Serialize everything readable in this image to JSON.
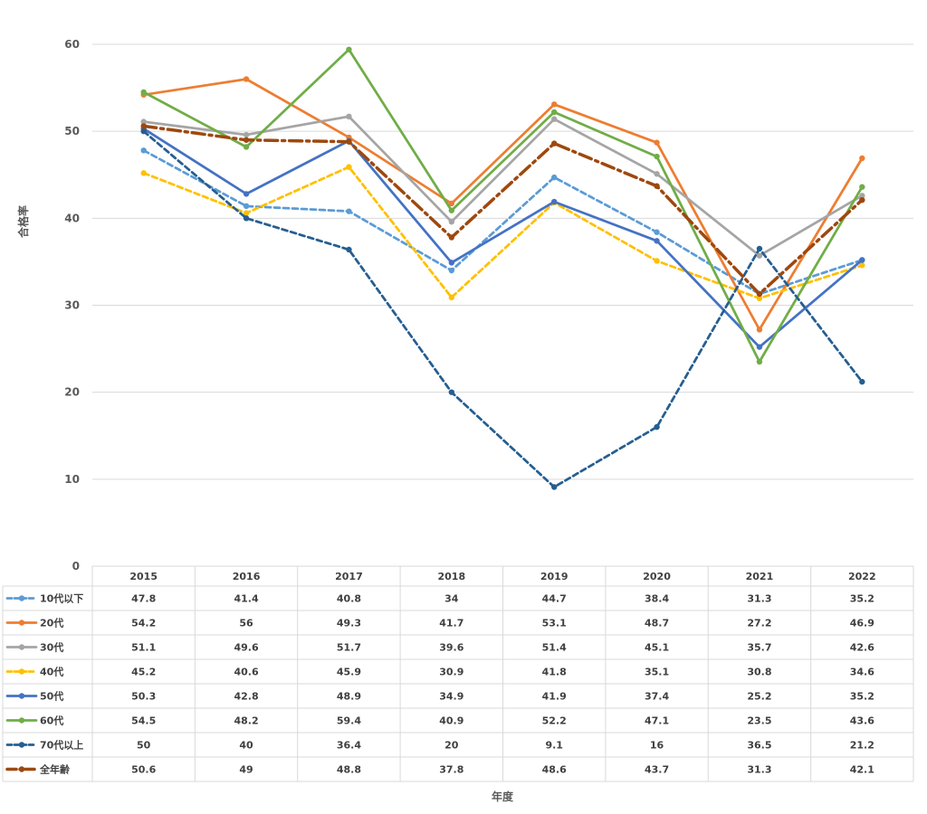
{
  "chart_data": {
    "type": "line",
    "ylabel": "合格率",
    "xlabel": "年度",
    "ylim": [
      0,
      60
    ],
    "yticks": [
      0,
      10,
      20,
      30,
      40,
      50,
      60
    ],
    "grid": true,
    "legend": "data-table",
    "categories": [
      "2015",
      "2016",
      "2017",
      "2018",
      "2019",
      "2020",
      "2021",
      "2022"
    ],
    "series": [
      {
        "name": "10代以下",
        "color": "#5B9BD5",
        "dash": "dash",
        "values": [
          47.8,
          41.4,
          40.8,
          34,
          44.7,
          38.4,
          31.3,
          35.2
        ]
      },
      {
        "name": "20代",
        "color": "#ED7D31",
        "dash": "solid",
        "values": [
          54.2,
          56,
          49.3,
          41.7,
          53.1,
          48.7,
          27.2,
          46.9
        ]
      },
      {
        "name": "30代",
        "color": "#A5A5A5",
        "dash": "solid",
        "values": [
          51.1,
          49.6,
          51.7,
          39.6,
          51.4,
          45.1,
          35.7,
          42.6
        ]
      },
      {
        "name": "40代",
        "color": "#FFC000",
        "dash": "dash",
        "values": [
          45.2,
          40.6,
          45.9,
          30.9,
          41.8,
          35.1,
          30.8,
          34.6
        ]
      },
      {
        "name": "50代",
        "color": "#4472C4",
        "dash": "solid",
        "values": [
          50.3,
          42.8,
          48.9,
          34.9,
          41.9,
          37.4,
          25.2,
          35.2
        ]
      },
      {
        "name": "60代",
        "color": "#70AD47",
        "dash": "solid",
        "values": [
          54.5,
          48.2,
          59.4,
          40.9,
          52.2,
          47.1,
          23.5,
          43.6
        ]
      },
      {
        "name": "70代以上",
        "color": "#255E91",
        "dash": "dash",
        "values": [
          50,
          40,
          36.4,
          20,
          9.1,
          16,
          36.5,
          21.2
        ]
      },
      {
        "name": "全年齢",
        "color": "#9E480E",
        "dash": "dash-dot",
        "values": [
          50.6,
          49,
          48.8,
          37.8,
          48.6,
          43.7,
          31.3,
          42.1
        ]
      }
    ]
  }
}
